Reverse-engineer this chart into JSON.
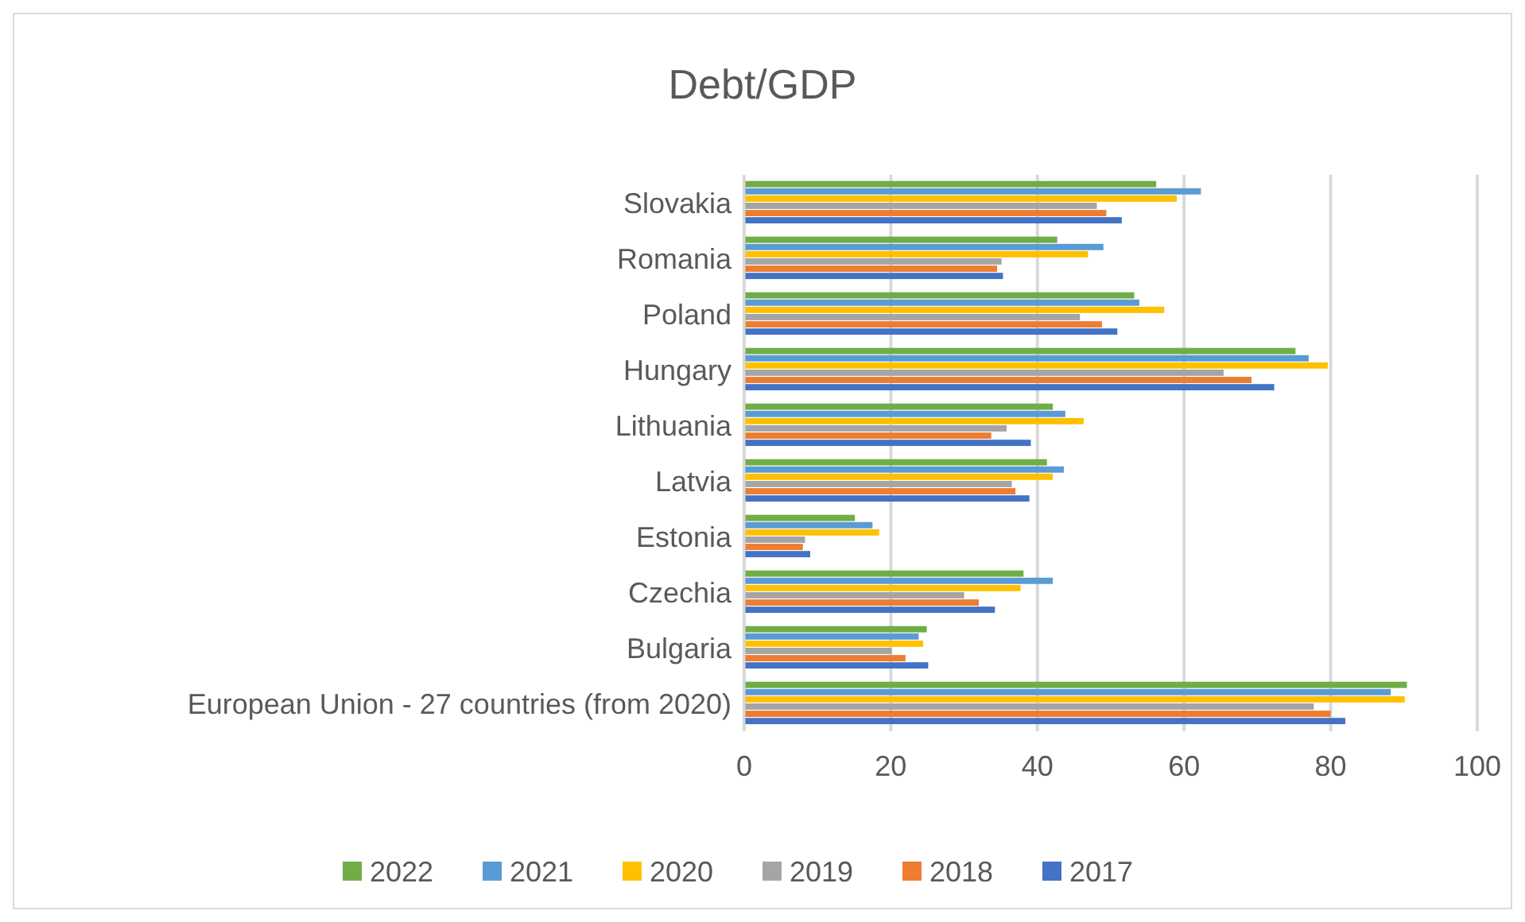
{
  "chart_data": {
    "type": "bar",
    "orientation": "horizontal",
    "title": "Debt/GDP",
    "categories": [
      "Slovakia",
      "Romania",
      "Poland",
      "Hungary",
      "Lithuania",
      "Latvia",
      "Estonia",
      "Czechia",
      "Bulgaria",
      "European Union - 27 countries (from 2020)"
    ],
    "series": [
      {
        "name": "2022",
        "color": "#70ad47",
        "values": [
          56.2,
          42.7,
          53.2,
          75.2,
          42.1,
          41.3,
          15.1,
          38.1,
          24.9,
          90.4
        ]
      },
      {
        "name": "2021",
        "color": "#5b9bd5",
        "values": [
          62.3,
          49.0,
          53.9,
          77.0,
          43.8,
          43.6,
          17.5,
          42.1,
          23.8,
          88.2
        ]
      },
      {
        "name": "2020",
        "color": "#ffc000",
        "values": [
          59.0,
          46.9,
          57.3,
          79.6,
          46.3,
          42.1,
          18.4,
          37.7,
          24.4,
          90.1
        ]
      },
      {
        "name": "2019",
        "color": "#a5a5a5",
        "values": [
          48.1,
          35.1,
          45.8,
          65.4,
          35.8,
          36.5,
          8.3,
          30.0,
          20.1,
          77.7
        ]
      },
      {
        "name": "2018",
        "color": "#ed7d31",
        "values": [
          49.4,
          34.5,
          48.8,
          69.2,
          33.7,
          37.0,
          8.0,
          32.0,
          22.0,
          80.0
        ]
      },
      {
        "name": "2017",
        "color": "#4472c4",
        "values": [
          51.5,
          35.3,
          50.9,
          72.3,
          39.1,
          38.9,
          9.0,
          34.2,
          25.1,
          82.0
        ]
      }
    ],
    "xlim": [
      0,
      100
    ],
    "xticks": [
      0,
      20,
      40,
      60,
      80,
      100
    ],
    "grid": "x",
    "legend": "bottom"
  }
}
